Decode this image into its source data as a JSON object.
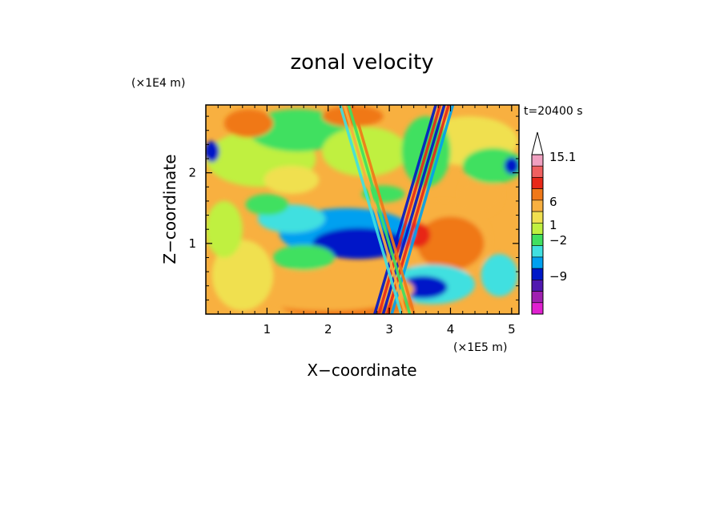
{
  "chart_data": {
    "type": "heatmap",
    "title": "zonal velocity",
    "xlabel": "X−coordinate",
    "ylabel": "Z−coordinate",
    "x_unit": "(×1E5 m)",
    "y_unit": "(×1E4 m)",
    "time_label": "t=20400 s",
    "xlim": [
      0,
      5.12
    ],
    "ylim": [
      0,
      2.96
    ],
    "x_ticks": [
      {
        "value": 1,
        "label": "1"
      },
      {
        "value": 2,
        "label": "2"
      },
      {
        "value": 3,
        "label": "3"
      },
      {
        "value": 4,
        "label": "4"
      },
      {
        "value": 5,
        "label": "5"
      }
    ],
    "y_ticks": [
      {
        "value": 1,
        "label": "1"
      },
      {
        "value": 2,
        "label": "2"
      }
    ],
    "colorbar": {
      "colors": [
        "#f0a0c0",
        "#f06060",
        "#e82818",
        "#f07818",
        "#f8b040",
        "#f0e050",
        "#c0f040",
        "#40e060",
        "#40e0e0",
        "#00a0f0",
        "#0018c8",
        "#5018b0",
        "#a020b0",
        "#e020d0"
      ],
      "over_color": "#ffffff",
      "labels": [
        {
          "value": 15.1,
          "label": "15.1"
        },
        {
          "value": 6,
          "label": "6"
        },
        {
          "value": 1,
          "label": "1"
        },
        {
          "value": -2,
          "label": "−2"
        },
        {
          "value": -9,
          "label": "−9"
        }
      ]
    },
    "background_color": "#f8b040",
    "features": [
      {
        "x": 3.9,
        "z": 1.05,
        "rx": 0.75,
        "rz": 0.55,
        "color": "#f8b040"
      },
      {
        "x": 4.0,
        "z": 1.0,
        "rx": 0.55,
        "rz": 0.38,
        "color": "#f07818"
      },
      {
        "x": 3.45,
        "z": 1.12,
        "rx": 0.22,
        "rz": 0.18,
        "color": "#e82818"
      },
      {
        "x": 4.5,
        "z": 1.7,
        "rx": 0.35,
        "rz": 0.3,
        "color": "#f8b040"
      },
      {
        "x": 2.3,
        "z": 1.15,
        "rx": 1.1,
        "rz": 0.35,
        "color": "#00a0f0"
      },
      {
        "x": 2.5,
        "z": 1.0,
        "rx": 0.75,
        "rz": 0.22,
        "color": "#0018c8"
      },
      {
        "x": 1.4,
        "z": 1.35,
        "rx": 0.55,
        "rz": 0.2,
        "color": "#40e0e0"
      },
      {
        "x": 3.7,
        "z": 0.42,
        "rx": 0.7,
        "rz": 0.28,
        "color": "#40e0e0"
      },
      {
        "x": 3.55,
        "z": 0.38,
        "rx": 0.4,
        "rz": 0.16,
        "color": "#0018c8"
      },
      {
        "x": 4.8,
        "z": 0.55,
        "rx": 0.3,
        "rz": 0.3,
        "color": "#40e0e0"
      },
      {
        "x": 2.3,
        "z": 0.15,
        "rx": 1.1,
        "rz": 0.22,
        "color": "#f07818"
      },
      {
        "x": 2.0,
        "z": 0.35,
        "rx": 1.4,
        "rz": 0.3,
        "color": "#f8b040"
      },
      {
        "x": 0.6,
        "z": 0.55,
        "rx": 0.5,
        "rz": 0.5,
        "color": "#f0e050"
      },
      {
        "x": 0.9,
        "z": 2.2,
        "rx": 0.9,
        "rz": 0.4,
        "color": "#c0f040"
      },
      {
        "x": 1.5,
        "z": 2.6,
        "rx": 0.8,
        "rz": 0.3,
        "color": "#40e060"
      },
      {
        "x": 2.6,
        "z": 2.3,
        "rx": 0.7,
        "rz": 0.35,
        "color": "#c0f040"
      },
      {
        "x": 4.3,
        "z": 2.45,
        "rx": 0.8,
        "rz": 0.35,
        "color": "#f0e050"
      },
      {
        "x": 4.7,
        "z": 2.1,
        "rx": 0.5,
        "rz": 0.25,
        "color": "#40e060"
      },
      {
        "x": 3.6,
        "z": 2.3,
        "rx": 0.4,
        "rz": 0.5,
        "color": "#40e060"
      },
      {
        "x": 0.3,
        "z": 1.2,
        "rx": 0.3,
        "rz": 0.4,
        "color": "#c0f040"
      },
      {
        "x": 1.0,
        "z": 1.55,
        "rx": 0.35,
        "rz": 0.15,
        "color": "#40e060"
      },
      {
        "x": 2.9,
        "z": 1.7,
        "rx": 0.35,
        "rz": 0.12,
        "color": "#40e060"
      },
      {
        "x": 0.1,
        "z": 2.3,
        "rx": 0.12,
        "rz": 0.15,
        "color": "#0018c8"
      },
      {
        "x": 5.0,
        "z": 2.1,
        "rx": 0.12,
        "rz": 0.12,
        "color": "#0018c8"
      },
      {
        "x": 1.6,
        "z": 0.8,
        "rx": 0.5,
        "rz": 0.18,
        "color": "#40e060"
      },
      {
        "x": 1.4,
        "z": 1.9,
        "rx": 0.45,
        "rz": 0.2,
        "color": "#f0e050"
      },
      {
        "x": 0.7,
        "z": 2.7,
        "rx": 0.4,
        "rz": 0.2,
        "color": "#f07818"
      },
      {
        "x": 2.4,
        "z": 2.8,
        "rx": 0.5,
        "rz": 0.15,
        "color": "#f07818"
      }
    ],
    "wave_beams": [
      {
        "x0": 2.9,
        "z0": 0.0,
        "x1": 3.9,
        "z1": 2.96,
        "colors": [
          "#0018c8",
          "#e82818",
          "#0018c8",
          "#e82818",
          "#00a0f0"
        ]
      },
      {
        "x0": 3.3,
        "z0": 0.0,
        "x1": 2.3,
        "z1": 2.96,
        "colors": [
          "#40e0e0",
          "#f8b040",
          "#40e060",
          "#f07818"
        ]
      }
    ]
  }
}
